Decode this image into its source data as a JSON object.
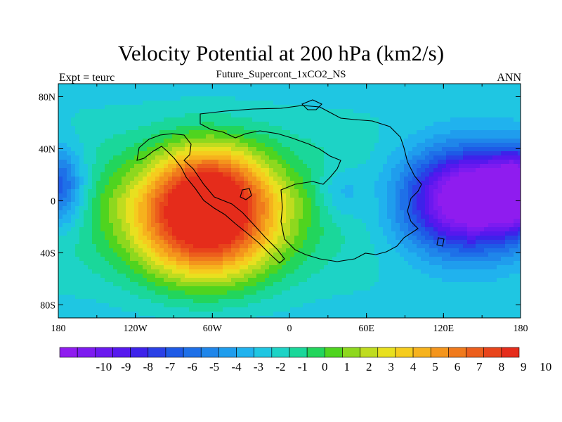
{
  "title": "Velocity Potential at 200 hPa (km2/s)",
  "subtitle": "Future_Supercont_1xCO2_NS",
  "left_label": "Expt = teurc",
  "right_label": "ANN",
  "x_ticks": [
    "180",
    "120W",
    "60W",
    "0",
    "60E",
    "120E",
    "180"
  ],
  "y_ticks": [
    "80N",
    "40N",
    "0",
    "40S",
    "80S"
  ],
  "colorbar": {
    "labels": [
      "-10",
      "-9",
      "-8",
      "-7",
      "-6",
      "-5",
      "-4",
      "-3",
      "-2",
      "-1",
      "0",
      "1",
      "2",
      "3",
      "4",
      "5",
      "6",
      "7",
      "8",
      "9",
      "10"
    ],
    "colors": [
      "#8f1cef",
      "#7d1bf0",
      "#6a19ef",
      "#5618ee",
      "#3d22ea",
      "#2a40e6",
      "#1e5ae6",
      "#1e70e8",
      "#1f86ea",
      "#1f9ded",
      "#20b2ee",
      "#1fc6e2",
      "#1dd3c6",
      "#1ad79a",
      "#22d55c",
      "#4fd41f",
      "#8ed81e",
      "#bfdc1f",
      "#e8e01f",
      "#f5cc1e",
      "#f6b21d",
      "#f4951c",
      "#f07a1c",
      "#ec5e1c",
      "#e8441b",
      "#e52c1b"
    ]
  },
  "field": {
    "center_x_deg": 0,
    "center_y_deg": 0,
    "lon_min": -180,
    "lon_max": 180,
    "lat_min": -90,
    "lat_max": 90,
    "levels_min": -10,
    "levels_max": 10
  }
}
